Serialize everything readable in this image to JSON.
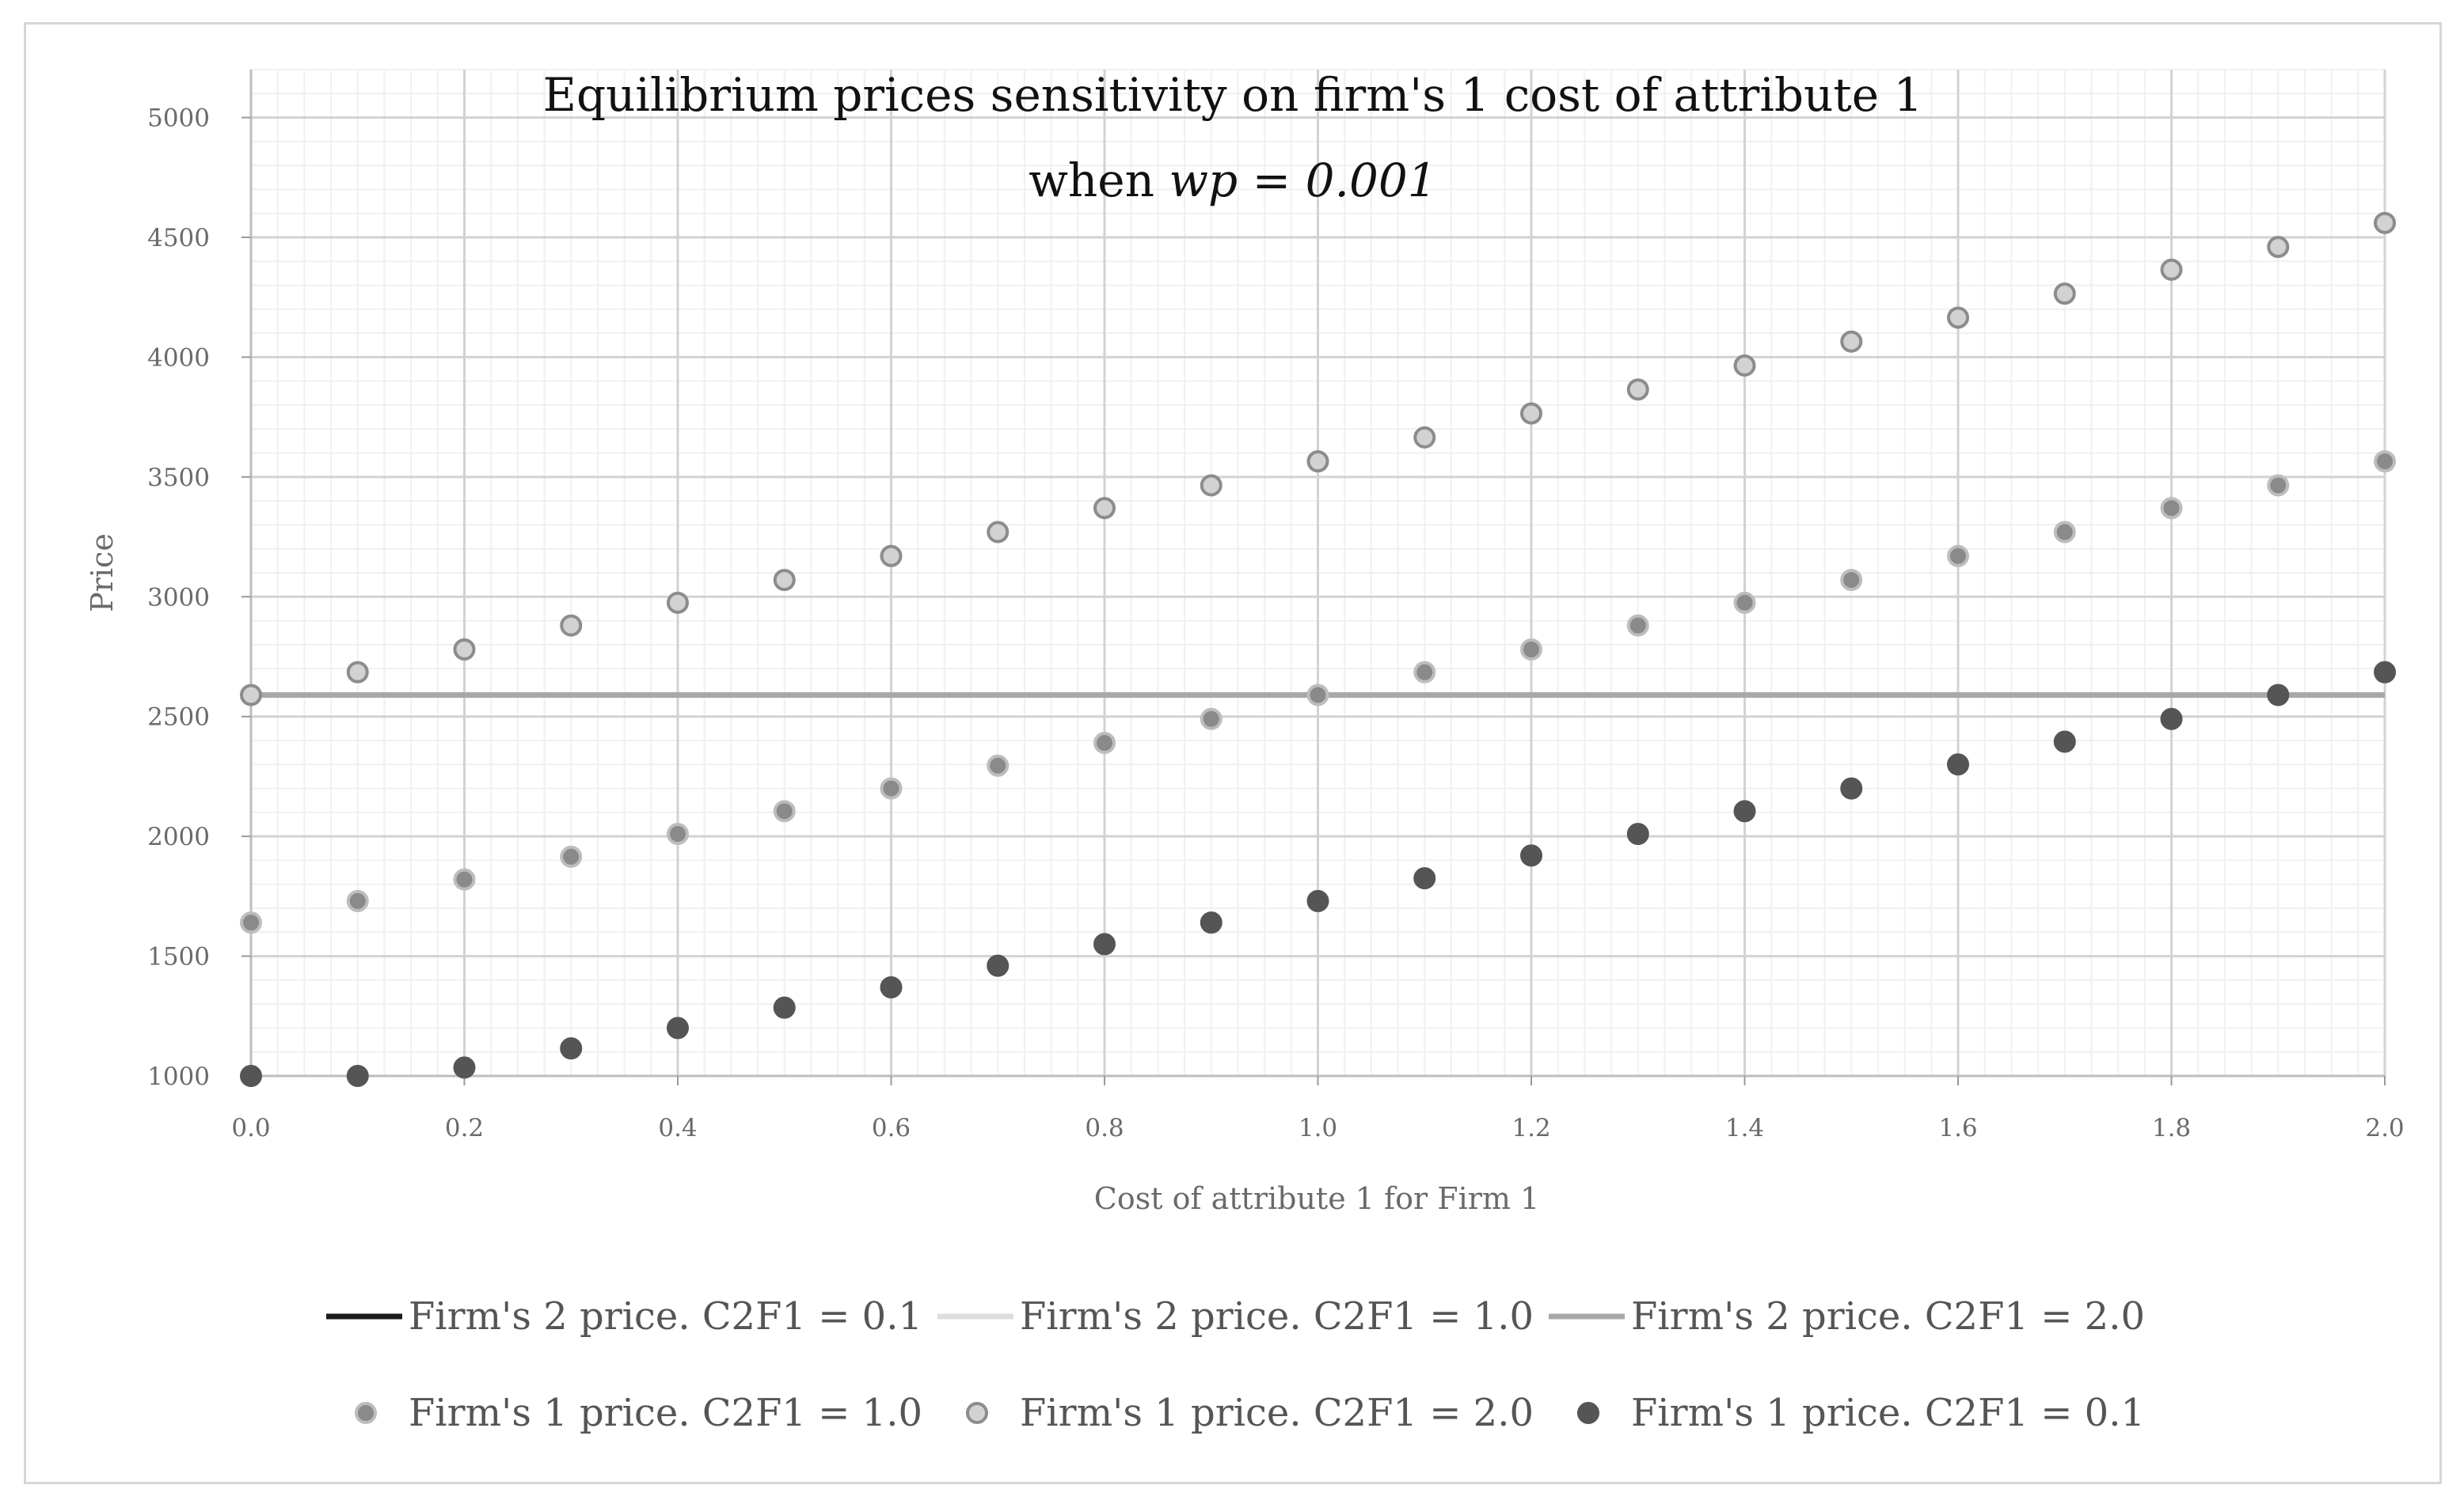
{
  "chart_data": {
    "type": "scatter",
    "title": "Equilibrium prices sensitivity on firm's 1 cost of attribute 1",
    "subtitle_prefix": "when ",
    "subtitle_italic": "wp = 0.001",
    "xlabel": "Cost of attribute 1 for Firm 1",
    "ylabel": "Price",
    "xlim": [
      0.0,
      2.0
    ],
    "ylim": [
      1000,
      5200
    ],
    "x_ticks": [
      0.0,
      0.2,
      0.4,
      0.6,
      0.8,
      1.0,
      1.2,
      1.4,
      1.6,
      1.8,
      2.0
    ],
    "x_tick_labels": [
      "0.0",
      "0.2",
      "0.4",
      "0.6",
      "0.8",
      "1.0",
      "1.2",
      "1.4",
      "1.6",
      "1.8",
      "2.0"
    ],
    "y_ticks": [
      1000,
      1500,
      2000,
      2500,
      3000,
      3500,
      4000,
      4500,
      5000
    ],
    "y_tick_labels": [
      "1000",
      "1500",
      "2000",
      "2500",
      "3000",
      "3500",
      "4000",
      "4500",
      "5000"
    ],
    "grid": true,
    "legend_position": "bottom",
    "x": [
      0.0,
      0.1,
      0.2,
      0.3,
      0.4,
      0.5,
      0.6,
      0.7,
      0.8,
      0.9,
      1.0,
      1.1,
      1.2,
      1.3,
      1.4,
      1.5,
      1.6,
      1.7,
      1.8,
      1.9,
      2.0
    ],
    "lines": [
      {
        "name": "Firm's 2 price. C2F1 = 0.1",
        "y": 2590,
        "color": "#1a1a1a"
      },
      {
        "name": "Firm's 2 price. C2F1 = 1.0",
        "y": 2590,
        "color": "#dddddd"
      },
      {
        "name": "Firm's 2 price. C2F1 = 2.0",
        "y": 2590,
        "color": "#a8a8a8"
      }
    ],
    "series": [
      {
        "name": "Firm's 1 price. C2F1 = 1.0",
        "fill": "#8a8a8a",
        "stroke": "#bdbdbd",
        "values": [
          1640,
          1730,
          1820,
          1915,
          2010,
          2105,
          2200,
          2295,
          2390,
          2490,
          2590,
          2685,
          2780,
          2880,
          2975,
          3070,
          3170,
          3270,
          3370,
          3465,
          3565
        ]
      },
      {
        "name": "Firm's 1 price. C2F1 = 2.0",
        "fill": "#d2d2d2",
        "stroke": "#8c8c8c",
        "values": [
          2590,
          2685,
          2780,
          2880,
          2975,
          3070,
          3170,
          3270,
          3370,
          3465,
          3565,
          3665,
          3765,
          3865,
          3965,
          4065,
          4165,
          4265,
          4365,
          4460,
          4560
        ]
      },
      {
        "name": "Firm's 1 price. C2F1 = 0.1",
        "fill": "#555555",
        "stroke": "#555555",
        "values": [
          1000,
          1000,
          1035,
          1115,
          1200,
          1285,
          1370,
          1460,
          1550,
          1640,
          1730,
          1825,
          1920,
          2010,
          2105,
          2200,
          2300,
          2395,
          2490,
          2590,
          2685
        ]
      }
    ]
  }
}
